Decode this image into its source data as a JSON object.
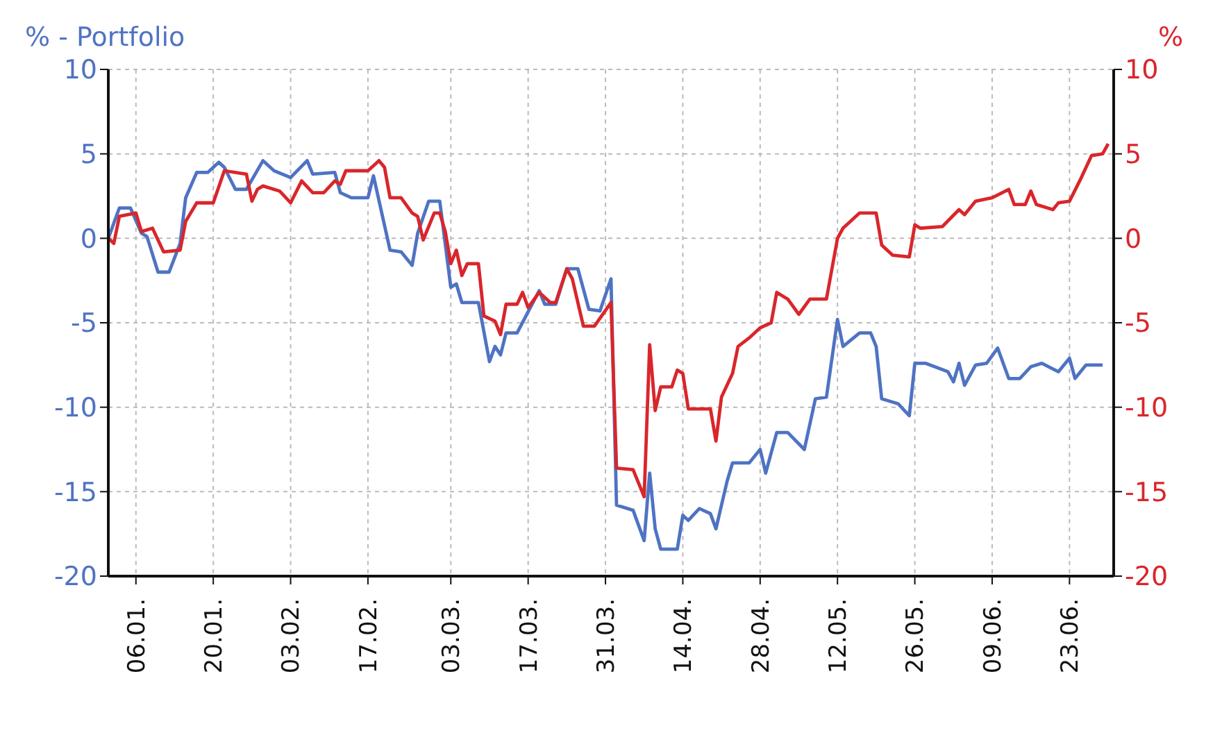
{
  "chart_data": {
    "type": "line",
    "ylabel": "% - Portfolio",
    "y2label": "%",
    "xlim": [
      "--01-01",
      "--07-01"
    ],
    "xticks": [
      {
        "value": "--01-06",
        "label": "06.01."
      },
      {
        "value": "--01-20",
        "label": "20.01."
      },
      {
        "value": "--02-03",
        "label": "03.02."
      },
      {
        "value": "--02-17",
        "label": "17.02."
      },
      {
        "value": "--03-03",
        "label": "03.03."
      },
      {
        "value": "--03-17",
        "label": "17.03."
      },
      {
        "value": "--03-31",
        "label": "31.03."
      },
      {
        "value": "--04-14",
        "label": "14.04."
      },
      {
        "value": "--04-28",
        "label": "28.04."
      },
      {
        "value": "--05-12",
        "label": "12.05."
      },
      {
        "value": "--05-26",
        "label": "26.05."
      },
      {
        "value": "--06-09",
        "label": "09.06."
      },
      {
        "value": "--06-23",
        "label": "23.06."
      }
    ],
    "ylim": [
      -20,
      10
    ],
    "yticks": [
      -20,
      -15,
      -10,
      -5,
      0,
      5,
      10
    ],
    "y2lim": [
      -20,
      10
    ],
    "y2ticks": [
      -20,
      -15,
      -10,
      -5,
      0,
      5,
      10
    ],
    "grid": true,
    "line_style": "solid",
    "marker": "none",
    "series": [
      {
        "color": "#4f73c3",
        "x": [
          "--01-01",
          "--01-03",
          "--01-05",
          "--01-07",
          "--01-08",
          "--01-10",
          "--01-12",
          "--01-14",
          "--01-15",
          "--01-17",
          "--01-19",
          "--01-21",
          "--01-22",
          "--01-24",
          "--01-26",
          "--01-29",
          "--01-31",
          "--02-03",
          "--02-06",
          "--02-07",
          "--02-11",
          "--02-12",
          "--02-14",
          "--02-17",
          "--02-18",
          "--02-21",
          "--02-23",
          "--02-25",
          "--02-26",
          "--02-28",
          "--03-01",
          "--03-03",
          "--03-04",
          "--03-05",
          "--03-08",
          "--03-10",
          "--03-11",
          "--03-12",
          "--03-13",
          "--03-15",
          "--03-19",
          "--03-20",
          "--03-22",
          "--03-24",
          "--03-26",
          "--03-28",
          "--03-30",
          "--04-01",
          "--04-02",
          "--04-05",
          "--04-07",
          "--04-08",
          "--04-09",
          "--04-10",
          "--04-13",
          "--04-14",
          "--04-15",
          "--04-17",
          "--04-19",
          "--04-20",
          "--04-22",
          "--04-23",
          "--04-26",
          "--04-28",
          "--04-29",
          "--05-01",
          "--05-03",
          "--05-06",
          "--05-08",
          "--05-10",
          "--05-12",
          "--05-13",
          "--05-16",
          "--05-18",
          "--05-19",
          "--05-20",
          "--05-23",
          "--05-25",
          "--05-26",
          "--05-27",
          "--05-28",
          "--06-01",
          "--06-02",
          "--06-03",
          "--06-04",
          "--06-06",
          "--06-08",
          "--06-10",
          "--06-12",
          "--06-14",
          "--06-16",
          "--06-18",
          "--06-21",
          "--06-23",
          "--06-24",
          "--06-26",
          "--06-29"
        ],
        "values": [
          0,
          1.8,
          1.8,
          0.3,
          0.1,
          -2,
          -2,
          -0.3,
          2.4,
          3.9,
          3.9,
          4.5,
          4.2,
          2.9,
          2.9,
          4.6,
          4,
          3.6,
          4.6,
          3.8,
          3.9,
          2.7,
          2.4,
          2.4,
          3.7,
          -0.7,
          -0.8,
          -1.6,
          0.3,
          2.2,
          2.2,
          -2.9,
          -2.7,
          -3.8,
          -3.8,
          -7.3,
          -6.4,
          -6.9,
          -5.6,
          -5.6,
          -3.1,
          -3.9,
          -3.9,
          -1.8,
          -1.8,
          -4.2,
          -4.3,
          -2.4,
          -15.8,
          -16.1,
          -17.9,
          -13.9,
          -17.2,
          -18.4,
          -18.4,
          -16.4,
          -16.7,
          -16,
          -16.3,
          -17.2,
          -14.4,
          -13.3,
          -13.3,
          -12.5,
          -13.9,
          -11.5,
          -11.5,
          -12.5,
          -9.5,
          -9.4,
          -4.8,
          -6.4,
          -5.6,
          -5.6,
          -6.4,
          -9.5,
          -9.8,
          -10.5,
          -7.4,
          -7.4,
          -7.4,
          -7.9,
          -8.5,
          -7.4,
          -8.7,
          -7.5,
          -7.4,
          -6.5,
          -8.3,
          -8.3,
          -7.6,
          -7.4,
          -7.9,
          -7.1,
          -8.3,
          -7.5,
          -7.5
        ]
      },
      {
        "color": "#d9262b",
        "axis": "y2",
        "x": [
          "--01-01",
          "--01-02",
          "--01-03",
          "--01-06",
          "--01-07",
          "--01-09",
          "--01-11",
          "--01-14",
          "--01-15",
          "--01-17",
          "--01-20",
          "--01-22",
          "--01-26",
          "--01-27",
          "--01-28",
          "--01-29",
          "--02-01",
          "--02-03",
          "--02-05",
          "--02-07",
          "--02-09",
          "--02-11",
          "--02-12",
          "--02-13",
          "--02-17",
          "--02-19",
          "--02-20",
          "--02-21",
          "--02-23",
          "--02-25",
          "--02-26",
          "--02-27",
          "--02-29",
          "--03-01",
          "--03-02",
          "--03-03",
          "--03-04",
          "--03-05",
          "--03-06",
          "--03-08",
          "--03-09",
          "--03-11",
          "--03-12",
          "--03-13",
          "--03-15",
          "--03-16",
          "--03-17",
          "--03-19",
          "--03-21",
          "--03-22",
          "--03-24",
          "--03-25",
          "--03-27",
          "--03-29",
          "--04-01",
          "--04-02",
          "--04-05",
          "--04-07",
          "--04-08",
          "--04-09",
          "--04-10",
          "--04-12",
          "--04-13",
          "--04-14",
          "--04-15",
          "--04-19",
          "--04-20",
          "--04-21",
          "--04-23",
          "--04-24",
          "--04-26",
          "--04-28",
          "--04-30",
          "--05-01",
          "--05-03",
          "--05-05",
          "--05-07",
          "--05-10",
          "--05-12",
          "--05-13",
          "--05-16",
          "--05-19",
          "--05-20",
          "--05-22",
          "--05-25",
          "--05-26",
          "--05-27",
          "--05-31",
          "--06-03",
          "--06-04",
          "--06-06",
          "--06-09",
          "--06-12",
          "--06-13",
          "--06-15",
          "--06-16",
          "--06-17",
          "--06-20",
          "--06-21",
          "--06-23",
          "--06-25",
          "--06-27",
          "--06-29",
          "--06-30"
        ],
        "values": [
          0,
          -0.3,
          1.3,
          1.5,
          0.4,
          0.6,
          -0.8,
          -0.7,
          1,
          2.1,
          2.1,
          4,
          3.8,
          2.2,
          2.9,
          3.1,
          2.8,
          2.1,
          3.4,
          2.7,
          2.7,
          3.4,
          3.2,
          4,
          4,
          4.6,
          4.2,
          2.4,
          2.4,
          1.5,
          1.3,
          -0.1,
          1.5,
          1.5,
          0.4,
          -1.5,
          -0.7,
          -2.2,
          -1.5,
          -1.5,
          -4.6,
          -4.9,
          -5.7,
          -3.9,
          -3.9,
          -3.2,
          -4.1,
          -3.2,
          -3.8,
          -3.8,
          -1.8,
          -2.4,
          -5.2,
          -5.2,
          -3.8,
          -13.6,
          -13.7,
          -15.3,
          -6.3,
          -10.2,
          -8.8,
          -8.8,
          -7.8,
          -8,
          -10.1,
          -10.1,
          -12,
          -9.4,
          -8,
          -6.4,
          -5.9,
          -5.3,
          -5,
          -3.2,
          -3.6,
          -4.5,
          -3.6,
          -3.6,
          0,
          0.6,
          1.5,
          1.5,
          -0.4,
          -1,
          -1.1,
          0.8,
          0.6,
          0.7,
          1.7,
          1.4,
          2.2,
          2.4,
          2.9,
          2,
          2,
          2.8,
          2,
          1.7,
          2.1,
          2.2,
          3.5,
          4.9,
          5,
          5.6
        ]
      }
    ]
  }
}
